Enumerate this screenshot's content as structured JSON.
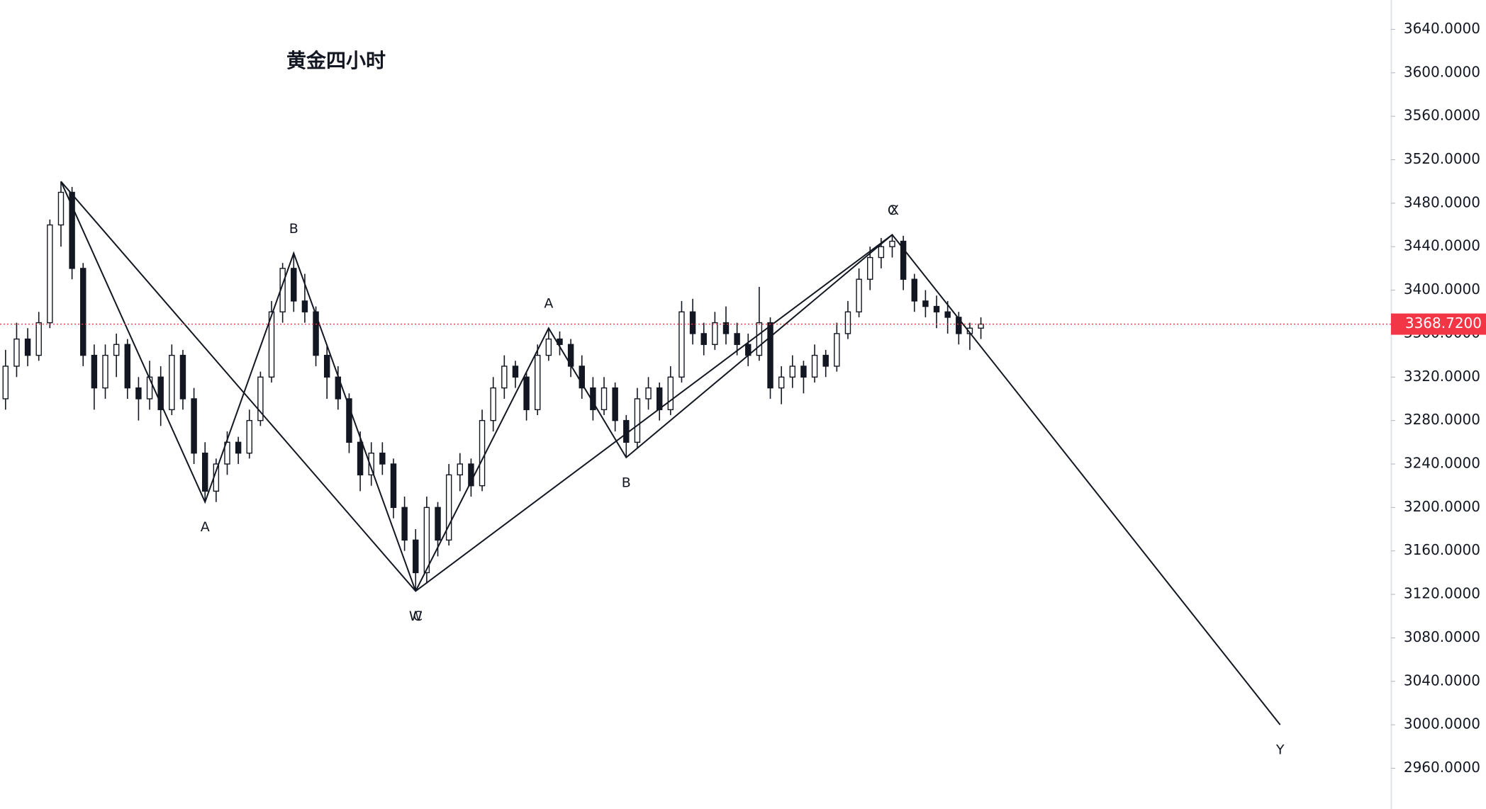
{
  "chart_data": {
    "type": "candlestick",
    "title": "黄金四小时",
    "xlim": [
      -0.5,
      125
    ],
    "ylim": [
      2922.5,
      3667
    ],
    "yticks": [
      {
        "value": 2960,
        "label": "2960.0000"
      },
      {
        "value": 3000,
        "label": "3000.0000"
      },
      {
        "value": 3040,
        "label": "3040.0000"
      },
      {
        "value": 3080,
        "label": "3080.0000"
      },
      {
        "value": 3120,
        "label": "3120.0000"
      },
      {
        "value": 3160,
        "label": "3160.0000"
      },
      {
        "value": 3200,
        "label": "3200.0000"
      },
      {
        "value": 3240,
        "label": "3240.0000"
      },
      {
        "value": 3280,
        "label": "3280.0000"
      },
      {
        "value": 3320,
        "label": "3320.0000"
      },
      {
        "value": 3360,
        "label": "3360.0000"
      },
      {
        "value": 3400,
        "label": "3400.0000"
      },
      {
        "value": 3440,
        "label": "3440.0000"
      },
      {
        "value": 3480,
        "label": "3480.0000"
      },
      {
        "value": 3520,
        "label": "3520.0000"
      },
      {
        "value": 3560,
        "label": "3560.0000"
      },
      {
        "value": 3600,
        "label": "3600.0000"
      },
      {
        "value": 3640,
        "label": "3640.0000"
      }
    ],
    "last_price": {
      "value": 3368.72,
      "label": "3368.7200",
      "color": "#f23645"
    },
    "candle_color": "#131722",
    "candles": [
      [
        3300,
        3345,
        3290,
        3330
      ],
      [
        3330,
        3370,
        3320,
        3355
      ],
      [
        3355,
        3365,
        3330,
        3340
      ],
      [
        3340,
        3380,
        3335,
        3370
      ],
      [
        3370,
        3465,
        3365,
        3460
      ],
      [
        3460,
        3500,
        3440,
        3490
      ],
      [
        3490,
        3495,
        3410,
        3420
      ],
      [
        3420,
        3425,
        3330,
        3340
      ],
      [
        3340,
        3350,
        3290,
        3310
      ],
      [
        3310,
        3350,
        3300,
        3340
      ],
      [
        3340,
        3360,
        3320,
        3350
      ],
      [
        3350,
        3355,
        3300,
        3310
      ],
      [
        3310,
        3320,
        3280,
        3300
      ],
      [
        3300,
        3335,
        3290,
        3320
      ],
      [
        3320,
        3330,
        3275,
        3290
      ],
      [
        3290,
        3350,
        3285,
        3340
      ],
      [
        3340,
        3345,
        3290,
        3300
      ],
      [
        3300,
        3310,
        3240,
        3250
      ],
      [
        3250,
        3260,
        3205,
        3215
      ],
      [
        3215,
        3245,
        3205,
        3240
      ],
      [
        3240,
        3270,
        3230,
        3260
      ],
      [
        3260,
        3265,
        3240,
        3250
      ],
      [
        3250,
        3290,
        3245,
        3280
      ],
      [
        3280,
        3325,
        3275,
        3320
      ],
      [
        3320,
        3390,
        3315,
        3380
      ],
      [
        3380,
        3425,
        3370,
        3420
      ],
      [
        3420,
        3434,
        3380,
        3390
      ],
      [
        3390,
        3415,
        3370,
        3380
      ],
      [
        3380,
        3385,
        3330,
        3340
      ],
      [
        3340,
        3350,
        3300,
        3320
      ],
      [
        3320,
        3330,
        3290,
        3300
      ],
      [
        3300,
        3305,
        3250,
        3260
      ],
      [
        3260,
        3270,
        3215,
        3230
      ],
      [
        3230,
        3260,
        3220,
        3250
      ],
      [
        3250,
        3260,
        3230,
        3240
      ],
      [
        3240,
        3245,
        3190,
        3200
      ],
      [
        3200,
        3210,
        3160,
        3170
      ],
      [
        3170,
        3180,
        3123,
        3140
      ],
      [
        3140,
        3210,
        3130,
        3200
      ],
      [
        3200,
        3205,
        3155,
        3170
      ],
      [
        3170,
        3240,
        3165,
        3230
      ],
      [
        3230,
        3250,
        3215,
        3240
      ],
      [
        3240,
        3245,
        3210,
        3220
      ],
      [
        3220,
        3290,
        3215,
        3280
      ],
      [
        3280,
        3320,
        3270,
        3310
      ],
      [
        3310,
        3340,
        3300,
        3330
      ],
      [
        3330,
        3335,
        3310,
        3320
      ],
      [
        3320,
        3325,
        3280,
        3290
      ],
      [
        3290,
        3350,
        3285,
        3340
      ],
      [
        3340,
        3365,
        3335,
        3355
      ],
      [
        3355,
        3362,
        3340,
        3350
      ],
      [
        3350,
        3355,
        3320,
        3330
      ],
      [
        3330,
        3340,
        3300,
        3310
      ],
      [
        3310,
        3320,
        3280,
        3290
      ],
      [
        3290,
        3320,
        3285,
        3310
      ],
      [
        3310,
        3315,
        3270,
        3280
      ],
      [
        3280,
        3285,
        3246,
        3260
      ],
      [
        3260,
        3310,
        3255,
        3300
      ],
      [
        3300,
        3320,
        3290,
        3310
      ],
      [
        3310,
        3315,
        3280,
        3290
      ],
      [
        3290,
        3330,
        3285,
        3320
      ],
      [
        3320,
        3390,
        3315,
        3380
      ],
      [
        3380,
        3392,
        3350,
        3360
      ],
      [
        3360,
        3370,
        3340,
        3350
      ],
      [
        3350,
        3380,
        3345,
        3370
      ],
      [
        3370,
        3385,
        3350,
        3360
      ],
      [
        3360,
        3370,
        3340,
        3350
      ],
      [
        3350,
        3360,
        3330,
        3340
      ],
      [
        3340,
        3403,
        3335,
        3370
      ],
      [
        3370,
        3375,
        3300,
        3310
      ],
      [
        3310,
        3330,
        3295,
        3320
      ],
      [
        3320,
        3340,
        3310,
        3330
      ],
      [
        3330,
        3335,
        3305,
        3320
      ],
      [
        3320,
        3350,
        3315,
        3340
      ],
      [
        3340,
        3345,
        3320,
        3330
      ],
      [
        3330,
        3370,
        3325,
        3360
      ],
      [
        3360,
        3390,
        3355,
        3380
      ],
      [
        3380,
        3420,
        3375,
        3410
      ],
      [
        3410,
        3440,
        3400,
        3430
      ],
      [
        3430,
        3448,
        3420,
        3440
      ],
      [
        3440,
        3451,
        3430,
        3445
      ],
      [
        3445,
        3450,
        3400,
        3410
      ],
      [
        3410,
        3415,
        3380,
        3390
      ],
      [
        3390,
        3400,
        3375,
        3385
      ],
      [
        3385,
        3395,
        3365,
        3380
      ],
      [
        3380,
        3390,
        3360,
        3375
      ],
      [
        3375,
        3380,
        3350,
        3360
      ],
      [
        3360,
        3370,
        3345,
        3365
      ],
      [
        3365,
        3375,
        3355,
        3368.72
      ]
    ],
    "pivots": [
      {
        "x": 5,
        "value": 3500
      },
      {
        "x": 18,
        "value": 3205,
        "labels": [
          "A"
        ]
      },
      {
        "x": 26,
        "value": 3434,
        "labels": [
          "B"
        ]
      },
      {
        "x": 37,
        "value": 3123,
        "labels": [
          "W",
          "C"
        ]
      },
      {
        "x": 49,
        "value": 3365,
        "labels": [
          "A"
        ]
      },
      {
        "x": 56,
        "value": 3246,
        "labels": [
          "B"
        ]
      },
      {
        "x": 80,
        "value": 3451,
        "labels": [
          "C",
          "X"
        ]
      },
      {
        "x": 115,
        "value": 3000,
        "labels": [
          "Y"
        ]
      }
    ]
  }
}
